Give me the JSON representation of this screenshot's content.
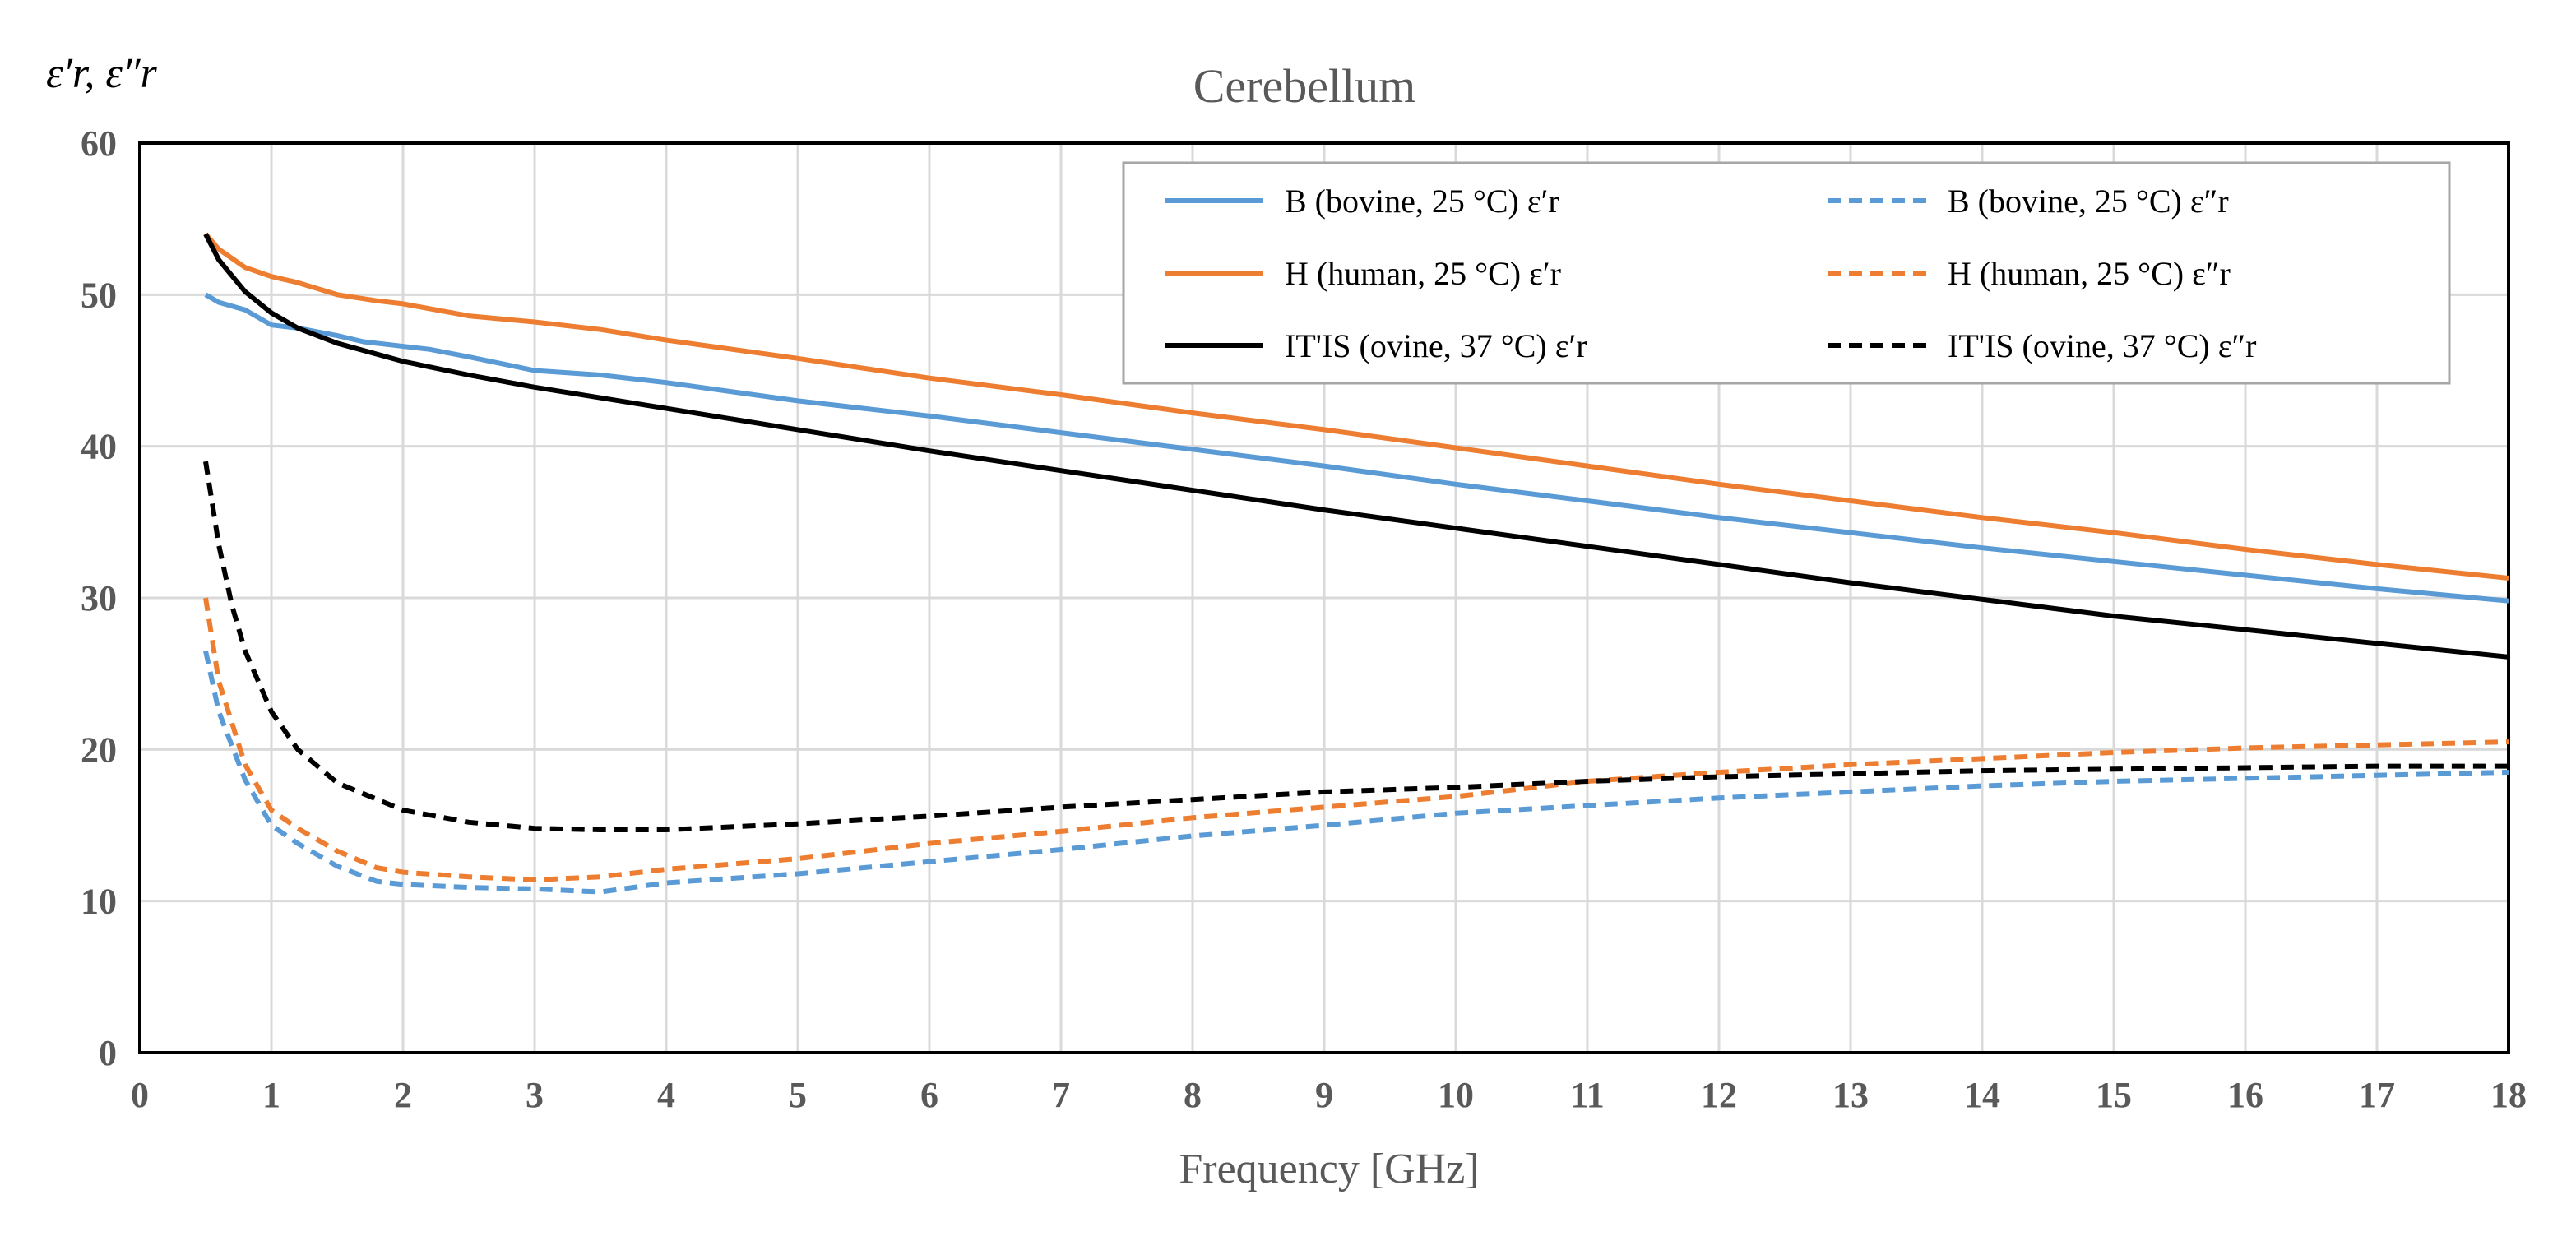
{
  "chart_data": {
    "type": "line",
    "title": "Cerebellum",
    "xlabel": "Frequency [GHz]",
    "ylabel": "ε′r, ε″r",
    "xlim": [
      0,
      18
    ],
    "ylim": [
      0,
      60
    ],
    "x_ticks": [
      "0",
      "1",
      "2",
      "3",
      "4",
      "5",
      "6",
      "7",
      "8",
      "9",
      "10",
      "11",
      "12",
      "13",
      "14",
      "15",
      "16",
      "17",
      "18"
    ],
    "y_ticks": [
      "0",
      "10",
      "20",
      "30",
      "40",
      "50",
      "60"
    ],
    "grid": true,
    "legend_position": "top-right",
    "colors": {
      "bovine": "#5B9BD5",
      "human": "#ED7D31",
      "itis": "#000000",
      "grid": "#D9D9D9",
      "text": "#595959"
    },
    "series": [
      {
        "name": "B (bovine, 25 °C) ε′r",
        "color": "#5B9BD5",
        "dash": "solid",
        "x": [
          0.5,
          0.6,
          0.8,
          1.0,
          1.2,
          1.5,
          1.7,
          1.9,
          2.2,
          2.5,
          3.0,
          3.5,
          4.0,
          5.0,
          6.0,
          7.0,
          8.0,
          9.0,
          10.0,
          11.0,
          12.0,
          13.0,
          14.0,
          15.0,
          16.0,
          17.0,
          18.0
        ],
        "y": [
          50.0,
          49.5,
          49.0,
          48.0,
          47.8,
          47.3,
          46.9,
          46.7,
          46.4,
          45.9,
          45.0,
          44.7,
          44.2,
          43.0,
          42.0,
          40.9,
          39.8,
          38.7,
          37.5,
          36.4,
          35.3,
          34.3,
          33.3,
          32.4,
          31.5,
          30.6,
          29.8
        ]
      },
      {
        "name": "B (bovine, 25 °C) ε″r",
        "color": "#5B9BD5",
        "dash": "dashed",
        "x": [
          0.5,
          0.6,
          0.8,
          1.0,
          1.2,
          1.5,
          1.8,
          2.0,
          2.5,
          3.0,
          3.5,
          4.0,
          5.0,
          6.0,
          7.0,
          8.0,
          9.0,
          10.0,
          11.0,
          12.0,
          13.0,
          14.0,
          15.0,
          16.0,
          17.0,
          18.0
        ],
        "y": [
          26.5,
          22.5,
          18.0,
          15.0,
          13.8,
          12.3,
          11.3,
          11.1,
          10.9,
          10.8,
          10.6,
          11.2,
          11.8,
          12.6,
          13.4,
          14.3,
          15.0,
          15.8,
          16.3,
          16.8,
          17.2,
          17.6,
          17.9,
          18.1,
          18.3,
          18.5
        ]
      },
      {
        "name": "H (human, 25 °C) ε′r",
        "color": "#ED7D31",
        "dash": "solid",
        "x": [
          0.5,
          0.6,
          0.8,
          1.0,
          1.2,
          1.5,
          1.8,
          2.0,
          2.5,
          3.0,
          3.5,
          4.0,
          5.0,
          6.0,
          7.0,
          8.0,
          9.0,
          10.0,
          11.0,
          12.0,
          13.0,
          14.0,
          15.0,
          16.0,
          17.0,
          18.0
        ],
        "y": [
          54.0,
          53.0,
          51.8,
          51.2,
          50.8,
          50.0,
          49.6,
          49.4,
          48.6,
          48.2,
          47.7,
          47.0,
          45.8,
          44.5,
          43.4,
          42.2,
          41.1,
          39.9,
          38.7,
          37.5,
          36.4,
          35.3,
          34.3,
          33.2,
          32.2,
          31.3
        ]
      },
      {
        "name": "H (human, 25 °C) ε″r",
        "color": "#ED7D31",
        "dash": "dashed",
        "x": [
          0.5,
          0.6,
          0.8,
          1.0,
          1.2,
          1.5,
          1.8,
          2.0,
          2.5,
          3.0,
          3.5,
          4.0,
          5.0,
          6.0,
          7.0,
          8.0,
          9.0,
          10.0,
          11.0,
          12.0,
          13.0,
          14.0,
          15.0,
          16.0,
          17.0,
          18.0
        ],
        "y": [
          30.0,
          24.5,
          19.0,
          16.0,
          14.8,
          13.3,
          12.2,
          11.9,
          11.6,
          11.4,
          11.6,
          12.1,
          12.8,
          13.8,
          14.6,
          15.5,
          16.2,
          16.9,
          17.9,
          18.5,
          19.0,
          19.4,
          19.8,
          20.1,
          20.3,
          20.5
        ]
      },
      {
        "name": "IT'IS (ovine, 37 °C) ε′r",
        "color": "#000000",
        "dash": "solid",
        "x": [
          0.5,
          0.6,
          0.8,
          1.0,
          1.2,
          1.5,
          2.0,
          2.5,
          3.0,
          4.0,
          5.0,
          6.0,
          7.0,
          8.0,
          9.0,
          10.0,
          11.0,
          12.0,
          13.0,
          14.0,
          15.0,
          16.0,
          17.0,
          18.0
        ],
        "y": [
          54.0,
          52.3,
          50.2,
          48.8,
          47.8,
          46.8,
          45.6,
          44.7,
          43.9,
          42.5,
          41.1,
          39.7,
          38.4,
          37.1,
          35.8,
          34.6,
          33.4,
          32.2,
          31.0,
          29.9,
          28.8,
          27.9,
          27.0,
          26.1
        ]
      },
      {
        "name": "IT'IS (ovine, 37 °C) ε″r",
        "color": "#000000",
        "dash": "dashed",
        "x": [
          0.5,
          0.6,
          0.7,
          0.8,
          1.0,
          1.2,
          1.5,
          2.0,
          2.5,
          3.0,
          3.5,
          4.0,
          5.0,
          6.0,
          7.0,
          8.0,
          9.0,
          10.0,
          11.0,
          12.0,
          13.0,
          14.0,
          15.0,
          16.0,
          17.0,
          18.0
        ],
        "y": [
          39.0,
          33.5,
          29.5,
          26.5,
          22.5,
          20.0,
          17.8,
          16.0,
          15.2,
          14.8,
          14.7,
          14.7,
          15.1,
          15.6,
          16.2,
          16.7,
          17.2,
          17.5,
          17.9,
          18.2,
          18.4,
          18.6,
          18.7,
          18.8,
          18.9,
          18.9
        ]
      }
    ]
  }
}
